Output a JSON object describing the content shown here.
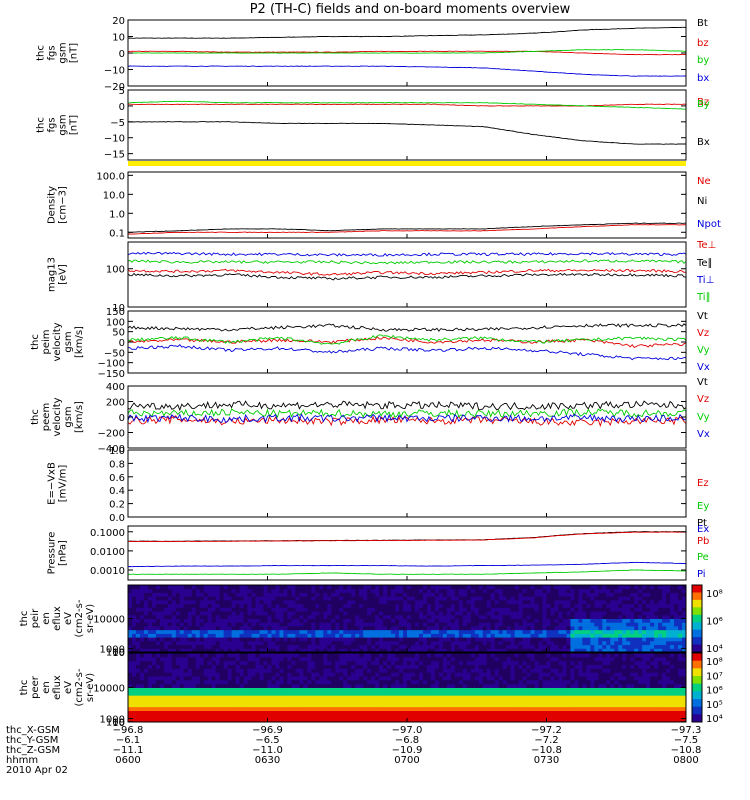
{
  "title": "P2 (TH-C) fields and on-board moments overview",
  "colors": {
    "black": "#000000",
    "red": "#e00000",
    "green": "#00cc00",
    "blue": "#0000dd",
    "yellow": "#ffee00"
  },
  "chart_data": [
    {
      "id": "fgs",
      "type": "line",
      "ylabel": [
        "thc",
        "fgs",
        "gsm",
        "[nT]"
      ],
      "ylim": [
        -20,
        20
      ],
      "yticks": [
        "20",
        "10",
        "0",
        "−10",
        "−20"
      ],
      "ytick_values": [
        20,
        10,
        0,
        -10,
        -20
      ],
      "series": [
        {
          "name": "Bt",
          "color": "black",
          "values": [
            9,
            9,
            9,
            9.5,
            10,
            10,
            10.5,
            11,
            12,
            14,
            15,
            15.5
          ]
        },
        {
          "name": "bz",
          "color": "red",
          "values": [
            1,
            1,
            0.5,
            0.5,
            0.5,
            1,
            1,
            1,
            1,
            0,
            -1,
            -1
          ]
        },
        {
          "name": "by",
          "color": "green",
          "values": [
            0,
            0,
            0,
            0,
            0,
            0,
            0,
            0,
            1,
            2,
            2,
            1
          ]
        },
        {
          "name": "bx",
          "color": "blue",
          "values": [
            -8,
            -8,
            -8,
            -8,
            -8,
            -8,
            -8.5,
            -9,
            -11,
            -13,
            -14,
            -14
          ]
        }
      ]
    },
    {
      "id": "fgs_bx",
      "type": "line",
      "ylabel": [
        "thc",
        "fgs",
        "gsm",
        "[nT]"
      ],
      "ylim": [
        -17,
        5
      ],
      "yticks": [
        "5",
        "0",
        "−5",
        "−10",
        "−15"
      ],
      "ytick_values": [
        5,
        0,
        -5,
        -10,
        -15
      ],
      "series": [
        {
          "name": "Bz",
          "color": "red",
          "values": [
            0.5,
            0.5,
            0.5,
            0.5,
            0.5,
            0.5,
            0.5,
            0,
            0,
            0,
            0.5,
            0.5
          ]
        },
        {
          "name": "By",
          "color": "green",
          "values": [
            1,
            1.5,
            1,
            1,
            1,
            1,
            1,
            1,
            0.5,
            0,
            -0.5,
            -1
          ]
        },
        {
          "name": "Bx",
          "color": "black",
          "values": [
            -5,
            -5,
            -5,
            -5.5,
            -5.5,
            -5.5,
            -6,
            -6.5,
            -9,
            -11,
            -12,
            -12
          ]
        }
      ]
    },
    {
      "id": "density",
      "type": "line",
      "log": true,
      "ylabel": [
        "Density",
        "[cm−3]"
      ],
      "ylim": [
        0.05,
        150
      ],
      "yticks": [
        "100.0",
        "10.0",
        "1.0",
        "0.1"
      ],
      "ytick_values": [
        100,
        10,
        1,
        0.1
      ],
      "series": [
        {
          "name": "Ne",
          "color": "red",
          "values": [
            0.08,
            0.1,
            0.1,
            0.1,
            0.1,
            0.12,
            0.12,
            0.12,
            0.15,
            0.2,
            0.25,
            0.25
          ]
        },
        {
          "name": "Ni",
          "color": "black",
          "values": [
            0.1,
            0.12,
            0.15,
            0.15,
            0.12,
            0.15,
            0.15,
            0.15,
            0.2,
            0.25,
            0.3,
            0.3
          ]
        },
        {
          "name": "Npot",
          "color": "blue",
          "values": []
        }
      ]
    },
    {
      "id": "temp",
      "type": "line",
      "log": true,
      "ylabel": [
        "mag13",
        "[eV]"
      ],
      "ylim": [
        10,
        500
      ],
      "yticks": [
        "100",
        "10"
      ],
      "ytick_values": [
        100,
        10
      ],
      "series": [
        {
          "name": "Te⊥",
          "color": "red",
          "values": [
            90,
            85,
            90,
            80,
            70,
            80,
            75,
            80,
            90,
            90,
            90,
            85
          ]
        },
        {
          "name": "Te∥",
          "color": "black",
          "values": [
            70,
            65,
            70,
            60,
            55,
            60,
            60,
            65,
            70,
            70,
            70,
            65
          ]
        },
        {
          "name": "Ti⊥",
          "color": "blue",
          "values": [
            250,
            250,
            240,
            240,
            230,
            230,
            240,
            240,
            240,
            250,
            240,
            240
          ]
        },
        {
          "name": "Ti∥",
          "color": "green",
          "values": [
            160,
            150,
            150,
            150,
            150,
            140,
            150,
            150,
            150,
            160,
            160,
            150
          ]
        }
      ]
    },
    {
      "id": "vel1",
      "type": "line",
      "ylabel": [
        "thc",
        "peim",
        "velocity",
        "gsm",
        "[km/s]"
      ],
      "ylim": [
        -150,
        150
      ],
      "yticks": [
        "150",
        "100",
        "50",
        "0",
        "−50",
        "−100",
        "−150"
      ],
      "ytick_values": [
        150,
        100,
        50,
        0,
        -50,
        -100,
        -150
      ],
      "series": [
        {
          "name": "Vt",
          "color": "black",
          "values": [
            70,
            65,
            60,
            70,
            80,
            60,
            60,
            60,
            70,
            80,
            80,
            80
          ]
        },
        {
          "name": "Vz",
          "color": "red",
          "values": [
            0,
            10,
            0,
            10,
            0,
            20,
            0,
            10,
            0,
            10,
            -20,
            -10
          ]
        },
        {
          "name": "Vy",
          "color": "green",
          "values": [
            10,
            20,
            0,
            20,
            -10,
            30,
            10,
            20,
            0,
            10,
            20,
            10
          ]
        },
        {
          "name": "Vx",
          "color": "blue",
          "values": [
            -30,
            -20,
            -40,
            -30,
            -50,
            -30,
            -40,
            -30,
            -40,
            -60,
            -80,
            -80
          ]
        }
      ]
    },
    {
      "id": "vel2",
      "type": "line",
      "ylabel": [
        "thc",
        "peem",
        "velocity",
        "gsm",
        "[km/s]"
      ],
      "ylim": [
        -400,
        400
      ],
      "yticks": [
        "400",
        "200",
        "0",
        "−200",
        "−400"
      ],
      "ytick_values": [
        400,
        200,
        0,
        -200,
        -400
      ],
      "series": [
        {
          "name": "Vt",
          "color": "black",
          "values": [
            150,
            140,
            160,
            150,
            160,
            150,
            150,
            140,
            140,
            150,
            160,
            150
          ]
        },
        {
          "name": "Vz",
          "color": "red",
          "values": [
            -50,
            -30,
            -60,
            -40,
            -60,
            -40,
            -50,
            -40,
            -60,
            -80,
            -50,
            -50
          ]
        },
        {
          "name": "Vy",
          "color": "green",
          "values": [
            50,
            40,
            60,
            40,
            50,
            40,
            50,
            40,
            50,
            60,
            50,
            50
          ]
        },
        {
          "name": "Vx",
          "color": "blue",
          "values": [
            -20,
            -10,
            -30,
            -10,
            -20,
            -10,
            -20,
            -10,
            -20,
            -10,
            -20,
            -10
          ]
        }
      ]
    },
    {
      "id": "efield",
      "type": "line",
      "ylabel": [
        "E=−VxB",
        "[mV/m]"
      ],
      "ylim": [
        0,
        1
      ],
      "yticks": [
        "1.0",
        "0.8",
        "0.6",
        "0.4",
        "0.2",
        "0.0"
      ],
      "ytick_values": [
        1,
        0.8,
        0.6,
        0.4,
        0.2,
        0
      ],
      "series": [
        {
          "name": "Ez",
          "color": "red",
          "values": []
        },
        {
          "name": "Ey",
          "color": "green",
          "values": []
        },
        {
          "name": "Ex",
          "color": "blue",
          "values": []
        }
      ]
    },
    {
      "id": "pressure",
      "type": "line",
      "log": true,
      "ylabel": [
        "Pressure",
        "[nPa]"
      ],
      "ylim": [
        0.0003,
        0.2
      ],
      "yticks": [
        "0.1000",
        "0.0100",
        "0.0010"
      ],
      "ytick_values": [
        0.1,
        0.01,
        0.001
      ],
      "series": [
        {
          "name": "Pt",
          "color": "black",
          "values": [
            0.032,
            0.032,
            0.033,
            0.034,
            0.035,
            0.036,
            0.037,
            0.038,
            0.05,
            0.08,
            0.1,
            0.1
          ]
        },
        {
          "name": "Pb",
          "color": "red",
          "values": [
            0.031,
            0.031,
            0.032,
            0.033,
            0.034,
            0.035,
            0.036,
            0.037,
            0.048,
            0.077,
            0.095,
            0.095
          ]
        },
        {
          "name": "Pe",
          "color": "green",
          "values": [
            0.0006,
            0.0006,
            0.0006,
            0.0006,
            0.0007,
            0.0006,
            0.0006,
            0.0006,
            0.0007,
            0.0008,
            0.001,
            0.0009
          ]
        },
        {
          "name": "Pi",
          "color": "blue",
          "values": [
            0.0015,
            0.0016,
            0.0016,
            0.0017,
            0.0017,
            0.0017,
            0.0016,
            0.0017,
            0.0018,
            0.002,
            0.0025,
            0.0022
          ]
        }
      ]
    },
    {
      "id": "peir",
      "type": "heatmap",
      "ylabel": [
        "thc",
        "peir",
        "en",
        "eflux",
        "eV",
        "(cm2-s-",
        "sr-eV)"
      ],
      "ylim": [
        10,
        20000
      ],
      "yticks": [
        "10000",
        "1000",
        "100",
        "10"
      ],
      "ytick_values": [
        10000,
        1000,
        100,
        10
      ],
      "colorbar_ticks": [
        "10⁸",
        "10⁶",
        "10⁴"
      ]
    },
    {
      "id": "peer",
      "type": "heatmap",
      "ylabel": [
        "thc",
        "peer",
        "en",
        "eflux",
        "eV",
        "(cm2-s-",
        "sr-eV)"
      ],
      "ylim": [
        7,
        20000
      ],
      "yticks": [
        "10000",
        "1000",
        "100",
        "10"
      ],
      "ytick_values": [
        10000,
        1000,
        100,
        10
      ],
      "colorbar_ticks": [
        "10⁸",
        "10⁷",
        "10⁶",
        "10⁵",
        "10⁴"
      ]
    }
  ],
  "footer": {
    "labels": [
      "thc_X-GSM",
      "thc_Y-GSM",
      "thc_Z-GSM",
      "hhmm",
      "2010 Apr 02"
    ],
    "columns": [
      {
        "x": "−96.8",
        "y": "−6.1",
        "z": "−11.1",
        "t": "0600"
      },
      {
        "x": "−96.9",
        "y": "−6.5",
        "z": "−11.0",
        "t": "0630"
      },
      {
        "x": "−97.0",
        "y": "−6.8",
        "z": "−10.9",
        "t": "0700"
      },
      {
        "x": "−97.2",
        "y": "−7.2",
        "z": "−10.8",
        "t": "0730"
      },
      {
        "x": "−97.3",
        "y": "−7.5",
        "z": "−10.8",
        "t": "0800"
      }
    ]
  }
}
